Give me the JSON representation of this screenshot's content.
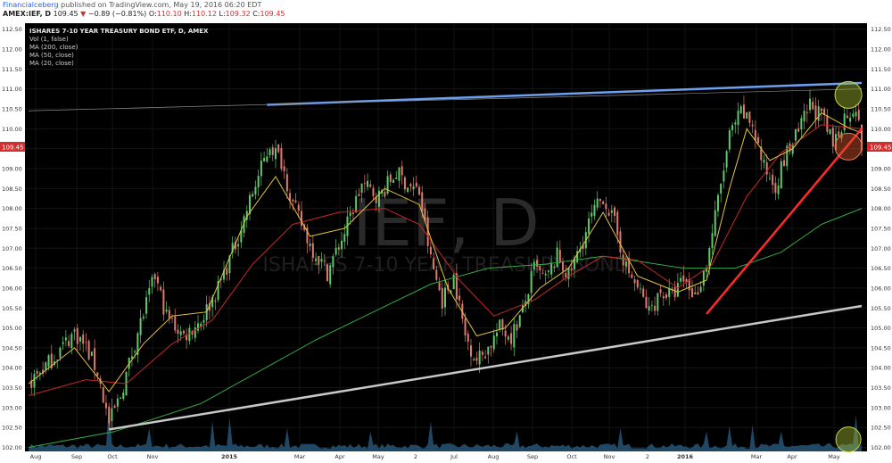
{
  "header": {
    "author": "Financialceberg",
    "published_text": "published on TradingView.com, May 19, 2016 06:20 EDT",
    "symbol": "AMEX:IEF, D",
    "last": "109.45",
    "change_arrow": "▼",
    "change": "−0.89 (−0.81%)",
    "o_label": "O:",
    "o": "110.10",
    "h_label": "H:",
    "h": "110.12",
    "l_label": "L:",
    "l": "109.32",
    "c_label": "C:",
    "c": "109.45"
  },
  "legend": {
    "title": "ISHARES 7-10 YEAR TREASURY BOND ETF, D, AMEX",
    "lines": [
      "Vol (1, false)",
      "MA (200, close)",
      "MA (50, close)",
      "MA (20, close)"
    ]
  },
  "watermark": {
    "big": "IEF, D",
    "small": "ISHARES 7-10 YEAR TREASURY BOND"
  },
  "price_badge": "109.45",
  "colors": {
    "background": "#000000",
    "up_candle": "#5fc96b",
    "down_candle": "#e07a6e",
    "ma20": "#e0c341",
    "ma50": "#c62828",
    "ma200": "#34a843",
    "volume": "#23506f",
    "trend_top_blue": "#6fa0f0",
    "trend_support_gray": "#c8c8c8",
    "trend_red": "#ff2a2a",
    "price_badge": "#d32f2f",
    "highlight_green": "#a5b830",
    "highlight_red": "#d9552e"
  },
  "chart_data": {
    "type": "candlestick",
    "title": "ISHARES 7-10 YEAR TREASURY BOND ETF, D, AMEX",
    "yaxis": {
      "range": [
        101.9,
        112.65
      ],
      "ticks": [
        "102.00",
        "102.50",
        "103.00",
        "103.50",
        "104.00",
        "104.50",
        "105.00",
        "105.50",
        "106.00",
        "106.50",
        "107.00",
        "107.50",
        "108.00",
        "108.50",
        "109.00",
        "109.50",
        "110.00",
        "110.50",
        "111.00",
        "111.50",
        "112.00",
        "112.50"
      ]
    },
    "xaxis": {
      "labels": [
        "Aug",
        "Sep",
        "Oct",
        "Nov",
        "2015",
        "Mar",
        "Apr",
        "May",
        "2",
        "Jul",
        "Aug",
        "Sep",
        "Oct",
        "Nov",
        "2",
        "2016",
        "Mar",
        "Apr",
        "May"
      ],
      "bold_labels": [
        "2015",
        "2016"
      ]
    },
    "approx_close_path": [
      [
        0,
        103.6
      ],
      [
        8,
        104.2
      ],
      [
        16,
        104.9
      ],
      [
        20,
        104.5
      ],
      [
        24,
        103.9
      ],
      [
        28,
        102.6
      ],
      [
        32,
        103.3
      ],
      [
        38,
        104.9
      ],
      [
        44,
        106.3
      ],
      [
        48,
        105.3
      ],
      [
        54,
        104.8
      ],
      [
        60,
        105.2
      ],
      [
        66,
        106.0
      ],
      [
        72,
        107.1
      ],
      [
        78,
        108.4
      ],
      [
        84,
        109.6
      ],
      [
        88,
        109.2
      ],
      [
        92,
        108.1
      ],
      [
        98,
        107.1
      ],
      [
        104,
        106.4
      ],
      [
        110,
        107.4
      ],
      [
        116,
        108.6
      ],
      [
        122,
        108.3
      ],
      [
        128,
        108.9
      ],
      [
        132,
        108.6
      ],
      [
        136,
        108.4
      ],
      [
        140,
        106.7
      ],
      [
        144,
        105.7
      ],
      [
        148,
        106.3
      ],
      [
        152,
        104.8
      ],
      [
        156,
        104.2
      ],
      [
        160,
        104.5
      ],
      [
        164,
        105.0
      ],
      [
        168,
        104.8
      ],
      [
        172,
        105.4
      ],
      [
        176,
        106.5
      ],
      [
        180,
        106.2
      ],
      [
        184,
        106.8
      ],
      [
        188,
        106.3
      ],
      [
        192,
        107.0
      ],
      [
        196,
        107.8
      ],
      [
        200,
        108.3
      ],
      [
        204,
        107.6
      ],
      [
        208,
        106.5
      ],
      [
        212,
        106.0
      ],
      [
        216,
        105.4
      ],
      [
        220,
        105.9
      ],
      [
        224,
        105.8
      ],
      [
        228,
        106.2
      ],
      [
        232,
        105.8
      ],
      [
        236,
        106.6
      ],
      [
        240,
        108.2
      ],
      [
        244,
        109.8
      ],
      [
        248,
        110.4
      ],
      [
        252,
        110.1
      ],
      [
        256,
        109.0
      ],
      [
        260,
        108.6
      ],
      [
        264,
        109.4
      ],
      [
        268,
        109.9
      ],
      [
        272,
        110.6
      ],
      [
        276,
        110.3
      ],
      [
        280,
        109.6
      ],
      [
        284,
        110.3
      ],
      [
        288,
        110.6
      ],
      [
        290,
        109.45
      ]
    ],
    "ma20_path": [
      [
        0,
        103.6
      ],
      [
        16,
        104.5
      ],
      [
        28,
        103.4
      ],
      [
        40,
        104.6
      ],
      [
        50,
        105.3
      ],
      [
        62,
        105.4
      ],
      [
        76,
        107.8
      ],
      [
        86,
        108.8
      ],
      [
        98,
        107.3
      ],
      [
        110,
        107.5
      ],
      [
        124,
        108.5
      ],
      [
        136,
        108.1
      ],
      [
        146,
        106.0
      ],
      [
        156,
        104.8
      ],
      [
        166,
        105.0
      ],
      [
        178,
        106.0
      ],
      [
        188,
        106.5
      ],
      [
        200,
        107.9
      ],
      [
        212,
        106.3
      ],
      [
        226,
        105.9
      ],
      [
        236,
        106.2
      ],
      [
        244,
        108.5
      ],
      [
        250,
        110.0
      ],
      [
        258,
        109.2
      ],
      [
        266,
        109.5
      ],
      [
        276,
        110.4
      ],
      [
        286,
        110.0
      ],
      [
        290,
        109.9
      ]
    ],
    "ma50_path": [
      [
        0,
        103.3
      ],
      [
        20,
        103.7
      ],
      [
        34,
        103.6
      ],
      [
        50,
        104.6
      ],
      [
        64,
        105.2
      ],
      [
        78,
        106.6
      ],
      [
        92,
        107.6
      ],
      [
        108,
        107.9
      ],
      [
        124,
        108.0
      ],
      [
        136,
        107.6
      ],
      [
        150,
        106.2
      ],
      [
        162,
        105.3
      ],
      [
        176,
        105.7
      ],
      [
        188,
        106.3
      ],
      [
        200,
        106.8
      ],
      [
        212,
        106.7
      ],
      [
        226,
        106.0
      ],
      [
        238,
        106.6
      ],
      [
        250,
        108.3
      ],
      [
        262,
        109.4
      ],
      [
        276,
        110.1
      ],
      [
        290,
        110.0
      ]
    ],
    "ma200_path": [
      [
        0,
        102.0
      ],
      [
        30,
        102.4
      ],
      [
        60,
        103.1
      ],
      [
        80,
        103.9
      ],
      [
        100,
        104.7
      ],
      [
        120,
        105.4
      ],
      [
        140,
        106.1
      ],
      [
        160,
        106.5
      ],
      [
        180,
        106.6
      ],
      [
        200,
        106.8
      ],
      [
        210,
        106.7
      ],
      [
        228,
        106.5
      ],
      [
        246,
        106.5
      ],
      [
        262,
        106.9
      ],
      [
        276,
        107.6
      ],
      [
        290,
        108.0
      ]
    ],
    "trendlines": [
      {
        "name": "resistance",
        "from": [
          83,
          110.6
        ],
        "to": [
          290,
          111.15
        ]
      },
      {
        "name": "support",
        "from": [
          28,
          102.45
        ],
        "to": [
          290,
          105.55
        ]
      },
      {
        "name": "red-rising",
        "from": [
          236,
          105.35
        ],
        "to": [
          290,
          110.0
        ]
      },
      {
        "name": "upper-thin",
        "from": [
          0,
          110.45
        ],
        "to": [
          290,
          111.0
        ]
      }
    ],
    "annotations": [
      {
        "type": "circle",
        "at": [
          286,
          110.85
        ],
        "style": "green"
      },
      {
        "type": "circle",
        "at": [
          286,
          109.55
        ],
        "style": "red"
      },
      {
        "type": "circle",
        "at": [
          286,
          102.2
        ],
        "style": "green"
      }
    ]
  }
}
